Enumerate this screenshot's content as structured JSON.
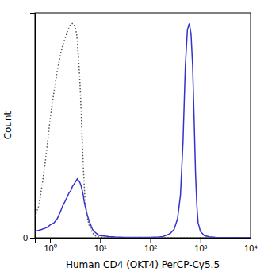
{
  "chart_data": {
    "type": "line",
    "xlabel": "Human CD4 (OKT4) PerCP-Cy5.5",
    "ylabel": "Count",
    "log": "x",
    "xlim": [
      0.5,
      10000
    ],
    "ylim": [
      0,
      1.05
    ],
    "xticks": [
      {
        "value": 1,
        "label": "10⁰"
      },
      {
        "value": 10,
        "label": "10¹"
      },
      {
        "value": 100,
        "label": "10²"
      },
      {
        "value": 1000,
        "label": "10³"
      },
      {
        "value": 10000,
        "label": "10⁴"
      }
    ],
    "yticks": [
      0
    ],
    "series": [
      {
        "color": "#3333cc",
        "line_style": "solid",
        "x": [
          0.5,
          0.6,
          0.7,
          0.8,
          0.9,
          1.0,
          1.2,
          1.4,
          1.6,
          1.8,
          2.0,
          2.2,
          2.4,
          2.6,
          2.8,
          3.0,
          3.2,
          3.4,
          3.5,
          3.6,
          3.8,
          4.0,
          4.2,
          4.4,
          4.6,
          4.8,
          5.0,
          5.5,
          6.0,
          6.5,
          7.0,
          7.5,
          8.0,
          8.5,
          9.0,
          9.5,
          10,
          12,
          15,
          18,
          20,
          25,
          30,
          40,
          50,
          60,
          70,
          80,
          100,
          120,
          150,
          180,
          200,
          250,
          300,
          350,
          400,
          450,
          500,
          550,
          600,
          650,
          700,
          750,
          800,
          850,
          900,
          1000,
          1200,
          1500,
          2000,
          3000,
          5000,
          7000,
          10000
        ],
        "values": [
          0.03,
          0.035,
          0.04,
          0.045,
          0.05,
          0.06,
          0.07,
          0.09,
          0.12,
          0.15,
          0.17,
          0.19,
          0.21,
          0.22,
          0.24,
          0.25,
          0.26,
          0.27,
          0.275,
          0.27,
          0.265,
          0.255,
          0.24,
          0.22,
          0.2,
          0.17,
          0.15,
          0.11,
          0.08,
          0.06,
          0.04,
          0.03,
          0.025,
          0.02,
          0.015,
          0.012,
          0.01,
          0.008,
          0.006,
          0.005,
          0.004,
          0.003,
          0.002,
          0.002,
          0.002,
          0.002,
          0.002,
          0.002,
          0.002,
          0.003,
          0.004,
          0.006,
          0.01,
          0.02,
          0.04,
          0.09,
          0.2,
          0.45,
          0.8,
          0.97,
          1.0,
          0.95,
          0.8,
          0.55,
          0.3,
          0.15,
          0.07,
          0.03,
          0.01,
          0.005,
          0.002,
          0.001,
          0.001,
          0.001,
          0.001
        ]
      },
      {
        "color": "#555555",
        "line_style": "dotted",
        "x": [
          0.5,
          0.6,
          0.7,
          0.8,
          0.9,
          1.0,
          1.2,
          1.4,
          1.6,
          1.8,
          2.0,
          2.2,
          2.4,
          2.6,
          2.8,
          3.0,
          3.2,
          3.4,
          3.5,
          3.6,
          3.8,
          4.0,
          4.2,
          4.4,
          4.6,
          4.8,
          5.0,
          5.5,
          6.0,
          6.5,
          7.0,
          7.5,
          8.0,
          8.5,
          9.0,
          9.5,
          10,
          12,
          15,
          18,
          20,
          25,
          30,
          40,
          50,
          60,
          70,
          80,
          100,
          200,
          500,
          1000,
          5000,
          10000
        ],
        "values": [
          0.1,
          0.15,
          0.25,
          0.35,
          0.45,
          0.55,
          0.68,
          0.78,
          0.85,
          0.9,
          0.93,
          0.96,
          0.98,
          0.995,
          1.0,
          0.995,
          0.98,
          0.95,
          0.92,
          0.88,
          0.8,
          0.7,
          0.58,
          0.45,
          0.34,
          0.25,
          0.18,
          0.1,
          0.06,
          0.04,
          0.025,
          0.015,
          0.01,
          0.007,
          0.005,
          0.003,
          0.002,
          0.001,
          0.001,
          0.001,
          0.001,
          0.001,
          0.001,
          0.001,
          0.001,
          0.001,
          0.001,
          0.001,
          0.001,
          0.001,
          0.001,
          0.001,
          0.001,
          0.001
        ]
      }
    ]
  }
}
